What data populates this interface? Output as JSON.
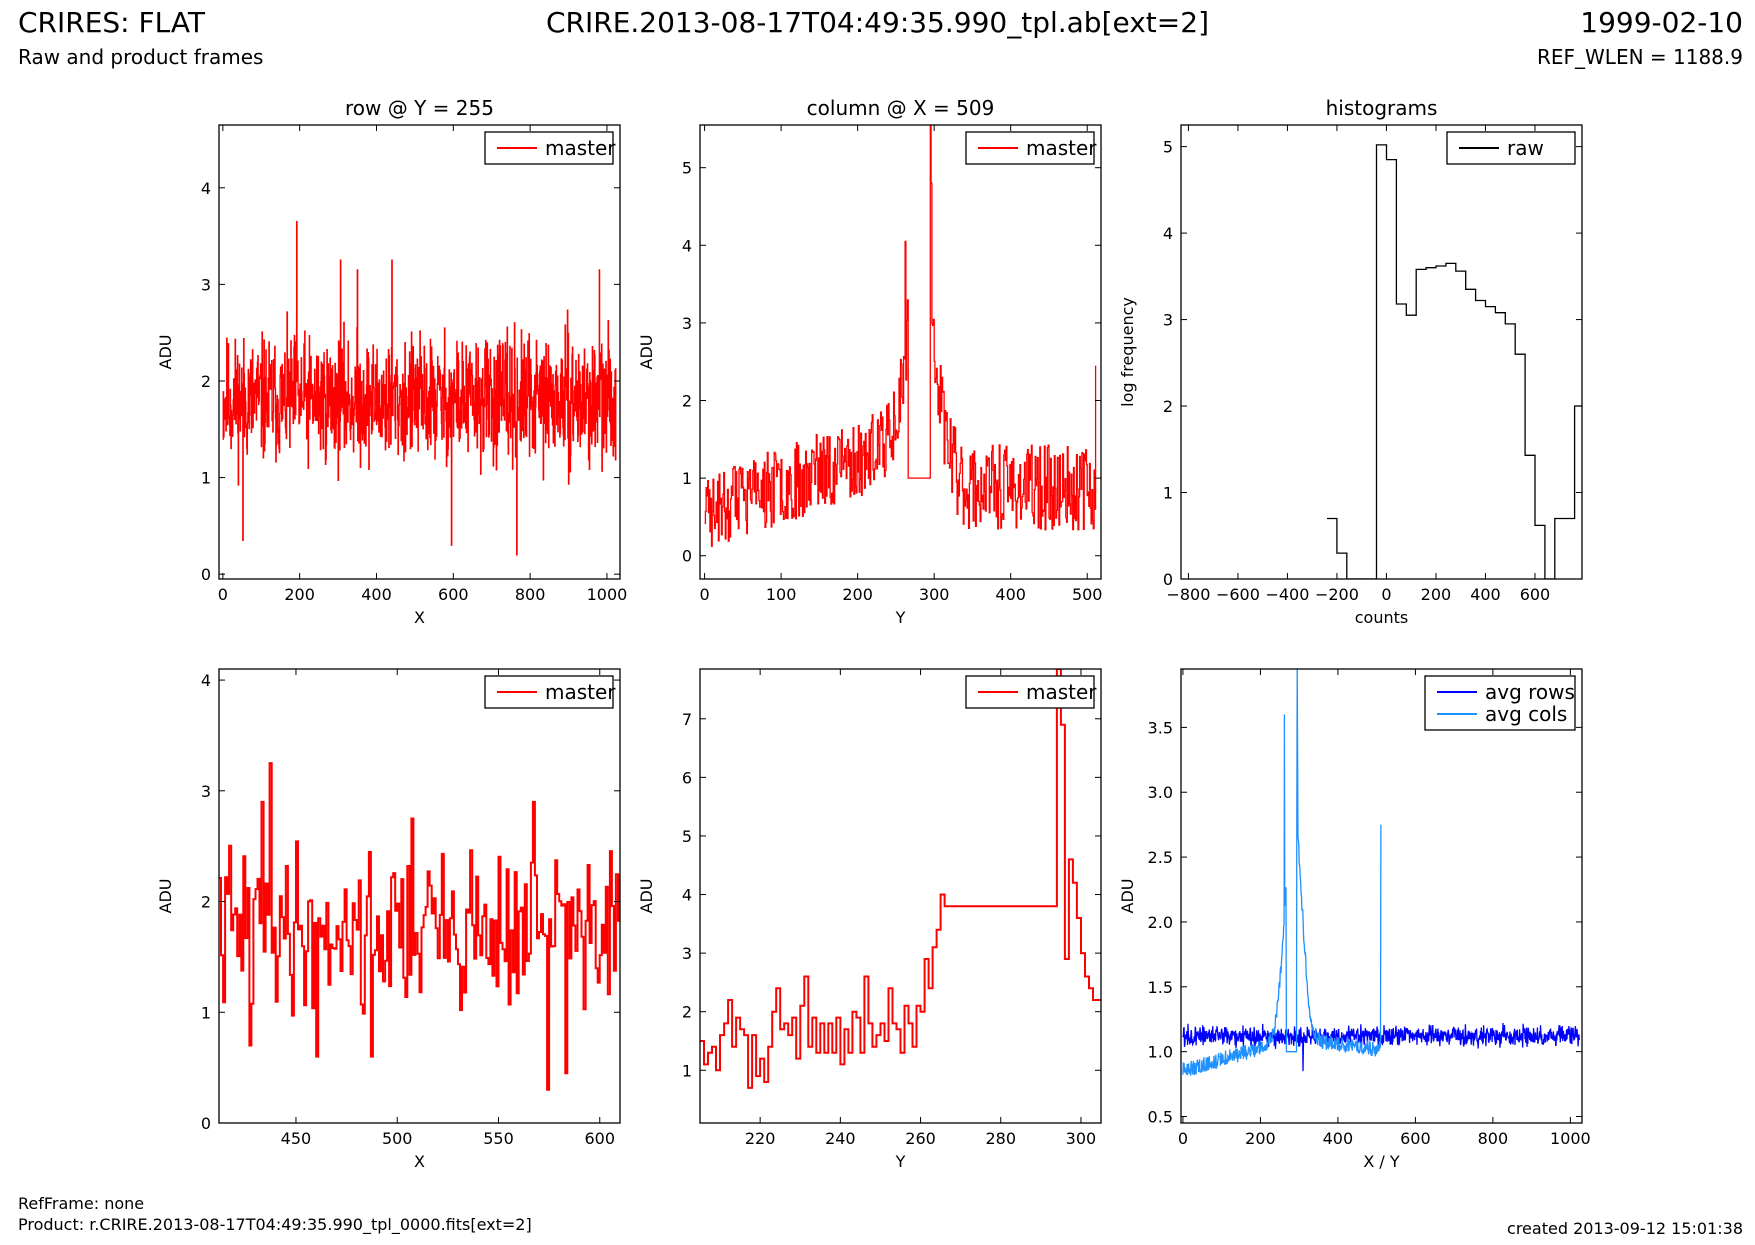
{
  "header": {
    "title_left": "CRIRES: FLAT",
    "subtitle_left": "Raw and product frames",
    "title_center": "CRIRE.2013-08-17T04:49:35.990_tpl.ab[ext=2]",
    "title_right": "1999-02-10",
    "subtitle_right": "REF_WLEN = 1188.9"
  },
  "footer": {
    "ref_frame": "RefFrame: none",
    "product": "Product: r.CRIRE.2013-08-17T04:49:35.990_tpl_0000.fits[ext=2]",
    "created": "created 2013-09-12 15:01:38"
  },
  "colors": {
    "red": "#ff0000",
    "dark_blue": "#0000ff",
    "light_blue": "#1e90ff",
    "black": "#000000"
  },
  "chart_data": [
    {
      "type": "line",
      "title": "row @ Y = 255",
      "xlabel": "X",
      "ylabel": "ADU",
      "xlim": [
        -10,
        1034
      ],
      "ylim": [
        -0.05,
        4.65
      ],
      "xticks": [
        0,
        200,
        400,
        600,
        800,
        1000
      ],
      "yticks": [
        0,
        1,
        2,
        3,
        4
      ],
      "legend": "top-right",
      "series": [
        {
          "name": "master",
          "color": "#ff0000",
          "step": true,
          "generator": {
            "kind": "noise",
            "x0": 0,
            "x1": 1023,
            "n": 1024,
            "mean": 1.8,
            "amp": 0.4,
            "seed": 11,
            "spikes": [
              [
                192,
                3.65
              ],
              [
                440,
                3.25
              ],
              [
                306,
                3.25
              ],
              [
                350,
                3.15
              ],
              [
                980,
                3.15
              ],
              [
                765,
                0.2
              ],
              [
                595,
                0.3
              ],
              [
                52,
                0.35
              ]
            ]
          }
        }
      ]
    },
    {
      "type": "line",
      "title": "column @ X = 509",
      "xlabel": "Y",
      "ylabel": "ADU",
      "xlim": [
        -6,
        518
      ],
      "ylim": [
        -0.3,
        5.55
      ],
      "xticks": [
        0,
        100,
        200,
        300,
        400,
        500
      ],
      "yticks": [
        0,
        1,
        2,
        3,
        4,
        5
      ],
      "legend": "top-right",
      "series": [
        {
          "name": "master",
          "color": "#ff0000",
          "step": true,
          "generator": {
            "kind": "column",
            "x0": 0,
            "x1": 511,
            "n": 512,
            "seed": 23,
            "flat": [
              266,
              294,
              1.0
            ],
            "spikes": [
              [
                262,
                4.05
              ],
              [
                295,
                5.55
              ],
              [
                296,
                4.8
              ],
              [
                511,
                2.45
              ],
              [
                510,
                0.6
              ]
            ]
          }
        }
      ]
    },
    {
      "type": "line",
      "title": "histograms",
      "xlabel": "counts",
      "ylabel": "log frequency",
      "xlim": [
        -830,
        790
      ],
      "ylim": [
        0,
        5.25
      ],
      "xticks": [
        -800,
        -600,
        -400,
        -200,
        0,
        200,
        400,
        600
      ],
      "yticks": [
        0,
        1,
        2,
        3,
        4,
        5
      ],
      "legend": "top-right",
      "series": [
        {
          "name": "raw",
          "color": "#000000",
          "step": true,
          "x": [
            -240,
            -200,
            -160,
            -120,
            -80,
            -40,
            0,
            40,
            80,
            120,
            160,
            200,
            240,
            280,
            320,
            360,
            400,
            440,
            480,
            520,
            560,
            600,
            640,
            680,
            720,
            760,
            790
          ],
          "values": [
            0.7,
            0.3,
            0,
            0,
            0,
            5.02,
            4.85,
            3.18,
            3.05,
            3.58,
            3.6,
            3.62,
            3.65,
            3.56,
            3.35,
            3.22,
            3.15,
            3.08,
            2.95,
            2.6,
            1.43,
            0.62,
            0,
            0.7,
            0.7,
            2.0,
            2.0
          ]
        }
      ]
    },
    {
      "type": "line",
      "title": "",
      "xlabel": "X",
      "ylabel": "ADU",
      "xlim": [
        412,
        610
      ],
      "ylim": [
        0,
        4.1
      ],
      "xticks": [
        450,
        500,
        550,
        600
      ],
      "yticks": [
        0,
        1,
        2,
        3,
        4
      ],
      "legend": "top-right",
      "series": [
        {
          "name": "master",
          "color": "#ff0000",
          "step": true,
          "generator": {
            "kind": "noise",
            "x0": 412,
            "x1": 610,
            "n": 199,
            "mean": 1.75,
            "amp": 0.45,
            "seed": 41,
            "spikes": [
              [
                437,
                3.25
              ],
              [
                433,
                2.9
              ],
              [
                507,
                2.75
              ],
              [
                567,
                2.9
              ],
              [
                574,
                0.3
              ],
              [
                583,
                0.45
              ],
              [
                460,
                0.6
              ],
              [
                427,
                0.7
              ],
              [
                487,
                0.6
              ]
            ]
          }
        }
      ]
    },
    {
      "type": "line",
      "title": "",
      "xlabel": "Y",
      "ylabel": "ADU",
      "xlim": [
        205,
        305
      ],
      "ylim": [
        0.1,
        7.85
      ],
      "xticks": [
        220,
        240,
        260,
        280,
        300
      ],
      "yticks": [
        1,
        2,
        3,
        4,
        5,
        6,
        7
      ],
      "legend": "top-right",
      "series": [
        {
          "name": "master",
          "color": "#ff0000",
          "step": true,
          "x": [
            205,
            206,
            207,
            208,
            209,
            210,
            211,
            212,
            213,
            214,
            215,
            216,
            217,
            218,
            219,
            220,
            221,
            222,
            223,
            224,
            225,
            226,
            227,
            228,
            229,
            230,
            231,
            232,
            233,
            234,
            235,
            236,
            237,
            238,
            239,
            240,
            241,
            242,
            243,
            244,
            245,
            246,
            247,
            248,
            249,
            250,
            251,
            252,
            253,
            254,
            255,
            256,
            257,
            258,
            259,
            260,
            261,
            262,
            263,
            264,
            265,
            266,
            294,
            295,
            296,
            297,
            298,
            299,
            300,
            301,
            302,
            303,
            304,
            305
          ],
          "values": [
            1.5,
            1.1,
            1.3,
            1.4,
            1.0,
            1.6,
            1.8,
            2.2,
            1.4,
            1.9,
            1.7,
            1.6,
            0.7,
            1.6,
            0.9,
            1.2,
            0.8,
            1.4,
            2.0,
            2.4,
            1.7,
            1.8,
            1.6,
            1.9,
            1.2,
            2.1,
            2.6,
            1.4,
            1.9,
            1.3,
            1.8,
            1.3,
            1.8,
            1.3,
            1.9,
            1.1,
            1.7,
            1.3,
            2.0,
            1.9,
            1.3,
            2.6,
            1.8,
            1.4,
            1.6,
            1.8,
            1.5,
            2.4,
            1.8,
            1.7,
            1.3,
            2.1,
            1.8,
            1.4,
            2.1,
            2.0,
            2.9,
            2.4,
            3.1,
            3.4,
            4.0,
            3.8,
            7.85,
            6.9,
            2.9,
            4.6,
            4.2,
            3.6,
            3.0,
            2.6,
            2.4,
            2.2,
            2.2,
            2.2
          ]
        }
      ]
    },
    {
      "type": "line",
      "title": "",
      "xlabel": "X / Y",
      "ylabel": "ADU",
      "xlim": [
        -5,
        1030
      ],
      "ylim": [
        0.45,
        3.95
      ],
      "xticks": [
        0,
        200,
        400,
        600,
        800,
        1000
      ],
      "yticks": [
        0.5,
        1.0,
        1.5,
        2.0,
        2.5,
        3.0,
        3.5
      ],
      "ytick_labels": [
        "0.5",
        "1.0",
        "1.5",
        "2.0",
        "2.5",
        "3.0",
        "3.5"
      ],
      "legend": "top-right",
      "series": [
        {
          "name": "avg rows",
          "color": "#0000ff",
          "step": false,
          "generator": {
            "kind": "noise",
            "x0": 0,
            "x1": 1023,
            "n": 1024,
            "mean": 1.12,
            "amp": 0.05,
            "seed": 57,
            "spikes": [
              [
                310,
                0.85
              ]
            ]
          }
        },
        {
          "name": "avg cols",
          "color": "#1e90ff",
          "step": false,
          "generator": {
            "kind": "avgcols",
            "x0": 0,
            "x1": 511,
            "n": 512,
            "seed": 63,
            "spikes": [
              [
                262,
                3.6
              ],
              [
                295,
                3.95
              ],
              [
                296,
                3.3
              ],
              [
                511,
                2.75
              ]
            ]
          }
        }
      ]
    }
  ]
}
